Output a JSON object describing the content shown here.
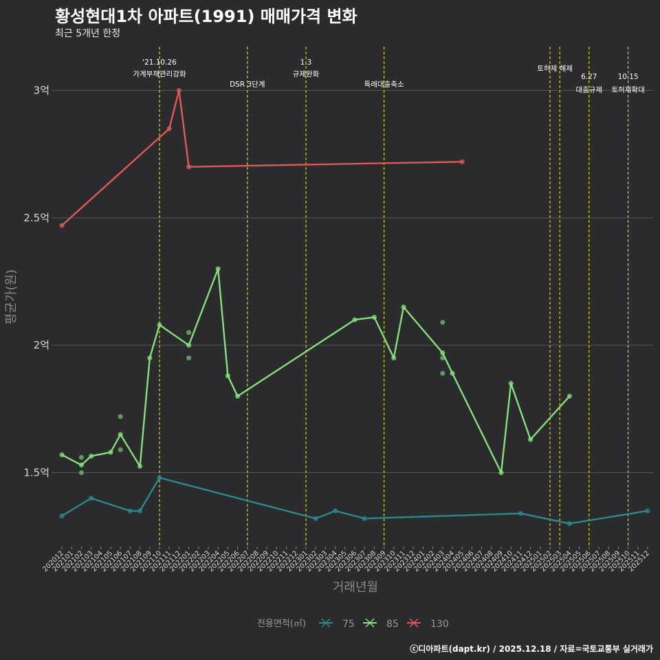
{
  "header": {
    "title": "황성현대1차 아파트(1991) 매매가격 변화",
    "subtitle": "최근 5개년 한정"
  },
  "footer": {
    "credit": "ⓒ디아파트(dapt.kr) / 2025.12.18 / 자료=국토교통부 실거래가"
  },
  "chart_data": {
    "type": "line",
    "title": "황성현대1차 아파트(1991) 매매가격 변화",
    "subtitle": "최근 5개년 한정",
    "xlabel": "거래년월",
    "ylabel": "평균가(원)",
    "ylim": [
      1.2,
      3.15
    ],
    "yticks": [
      {
        "value": 1.5,
        "label": "1.5억"
      },
      {
        "value": 2.0,
        "label": "2억"
      },
      {
        "value": 2.5,
        "label": "2.5억"
      },
      {
        "value": 3.0,
        "label": "3억"
      }
    ],
    "x_start": "2020-12",
    "x_end": "2025-12",
    "grid": true,
    "legend": {
      "title": "전용면적(㎡)",
      "position": "bottom"
    },
    "series": [
      {
        "name": "75",
        "color": "#2a8a8c",
        "points": [
          {
            "x": "2020-12",
            "y": 1.33
          },
          {
            "x": "2021-03",
            "y": 1.4
          },
          {
            "x": "2021-07",
            "y": 1.35
          },
          {
            "x": "2021-08",
            "y": 1.35
          },
          {
            "x": "2021-10",
            "y": 1.48
          },
          {
            "x": "2023-02",
            "y": 1.32
          },
          {
            "x": "2023-04",
            "y": 1.35
          },
          {
            "x": "2023-07",
            "y": 1.32
          },
          {
            "x": "2024-11",
            "y": 1.34
          },
          {
            "x": "2025-04",
            "y": 1.3
          },
          {
            "x": "2025-12",
            "y": 1.35
          }
        ],
        "scatter": []
      },
      {
        "name": "85",
        "color": "#86e07e",
        "points": [
          {
            "x": "2020-12",
            "y": 1.57
          },
          {
            "x": "2021-02",
            "y": 1.53
          },
          {
            "x": "2021-03",
            "y": 1.565
          },
          {
            "x": "2021-05",
            "y": 1.58
          },
          {
            "x": "2021-06",
            "y": 1.65
          },
          {
            "x": "2021-08",
            "y": 1.525
          },
          {
            "x": "2021-09",
            "y": 1.95
          },
          {
            "x": "2021-10",
            "y": 2.08
          },
          {
            "x": "2022-01",
            "y": 2.0
          },
          {
            "x": "2022-04",
            "y": 2.3
          },
          {
            "x": "2022-05",
            "y": 1.88
          },
          {
            "x": "2022-06",
            "y": 1.8
          },
          {
            "x": "2023-06",
            "y": 2.1
          },
          {
            "x": "2023-08",
            "y": 2.11
          },
          {
            "x": "2023-10",
            "y": 1.95
          },
          {
            "x": "2023-11",
            "y": 2.15
          },
          {
            "x": "2024-03",
            "y": 1.97
          },
          {
            "x": "2024-04",
            "y": 1.89
          },
          {
            "x": "2024-09",
            "y": 1.5
          },
          {
            "x": "2024-10",
            "y": 1.85
          },
          {
            "x": "2024-12",
            "y": 1.63
          },
          {
            "x": "2025-04",
            "y": 1.8
          }
        ],
        "scatter": [
          {
            "x": "2021-02",
            "y": 1.56
          },
          {
            "x": "2021-02",
            "y": 1.5
          },
          {
            "x": "2021-06",
            "y": 1.72
          },
          {
            "x": "2021-06",
            "y": 1.59
          },
          {
            "x": "2022-01",
            "y": 2.05
          },
          {
            "x": "2022-01",
            "y": 1.95
          },
          {
            "x": "2024-03",
            "y": 2.09
          },
          {
            "x": "2024-03",
            "y": 1.95
          },
          {
            "x": "2024-03",
            "y": 1.89
          }
        ]
      },
      {
        "name": "130",
        "color": "#e05a5a",
        "points": [
          {
            "x": "2020-12",
            "y": 2.47
          },
          {
            "x": "2021-11",
            "y": 2.85
          },
          {
            "x": "2021-12",
            "y": 3.0
          },
          {
            "x": "2022-01",
            "y": 2.7
          },
          {
            "x": "2024-05",
            "y": 2.72
          }
        ],
        "scatter": []
      }
    ],
    "annotations": [
      {
        "x": "2021-10",
        "lines": [
          "'21.10.26",
          "가계부채관리강화"
        ],
        "level": "upper"
      },
      {
        "x": "2022-07",
        "lines": [
          "DSR 3단계"
        ],
        "level": "lower"
      },
      {
        "x": "2023-01",
        "lines": [
          "1.3",
          "규제완화"
        ],
        "level": "upper"
      },
      {
        "x": "2023-09",
        "lines": [
          "특례대출축소"
        ],
        "level": "lower"
      },
      {
        "x": "2025-02",
        "lines": [],
        "level": "none"
      },
      {
        "x": "2025-03",
        "lines": [
          "토허제 해제"
        ],
        "level": "mid",
        "label_x": "2025-02"
      },
      {
        "x": "2025-06",
        "lines": [
          "6.27",
          "대출규제"
        ],
        "level": "low2"
      },
      {
        "x": "2025-10",
        "lines": [
          "10.15",
          "토허제확대"
        ],
        "level": "low2"
      }
    ]
  }
}
